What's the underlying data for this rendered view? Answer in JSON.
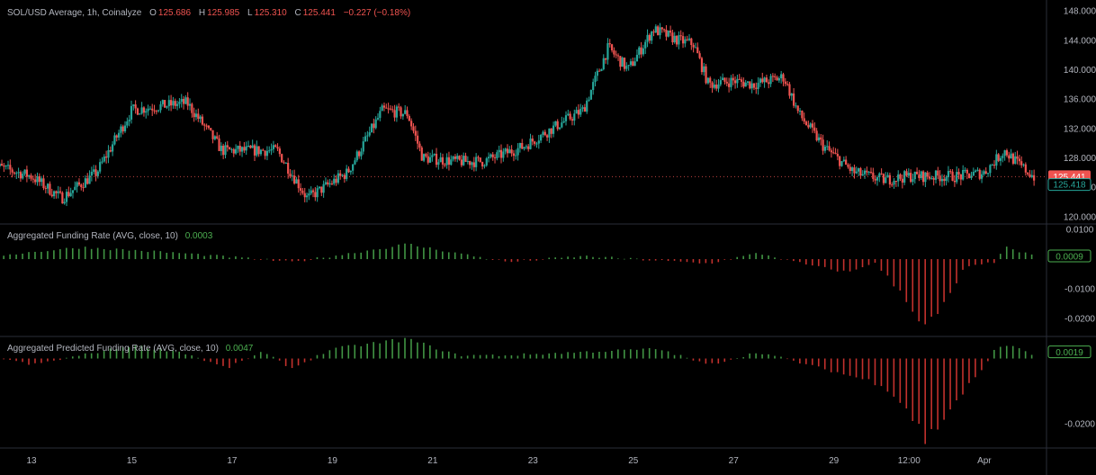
{
  "header": {
    "symbol": "SOL/USD Average, 1h, Coinalyze",
    "open_label": "O",
    "open": "125.686",
    "high_label": "H",
    "high": "125.985",
    "low_label": "L",
    "low": "125.310",
    "close_label": "C",
    "close": "125.441",
    "change": "−0.227 (−0.18%)"
  },
  "panes": {
    "funding": {
      "title": "Aggregated Funding Rate (AVG, close, 10)",
      "value": "0.0003",
      "badge": "0.0009"
    },
    "predicted": {
      "title": "Aggregated Predicted Funding Rate (AVG, close, 10)",
      "value": "0.0047",
      "badge": "0.0019"
    }
  },
  "colors": {
    "up": "#26a69a",
    "down": "#ef5350",
    "hist_up": "#4caf50",
    "hist_down": "#e53935",
    "grid": "#2a2e39",
    "text": "#b2b5be"
  },
  "price_badges": {
    "last": "125.441",
    "bid": "125.418"
  },
  "chart_data": [
    {
      "type": "candlestick",
      "title": "SOL/USD Average, 1h, Coinalyze",
      "x_ticks": [
        "13",
        "15",
        "17",
        "19",
        "21",
        "23",
        "25",
        "27",
        "29",
        "12:00",
        "Apr"
      ],
      "y_ticks": [
        "120.000",
        "124.000",
        "128.000",
        "132.000",
        "136.000",
        "140.000",
        "144.000",
        "148.000"
      ],
      "ylim": [
        119,
        149
      ],
      "close_path": [
        {
          "day": 12.2,
          "close": 127
        },
        {
          "day": 13.0,
          "close": 125.5
        },
        {
          "day": 13.6,
          "close": 122.5
        },
        {
          "day": 14.3,
          "close": 126
        },
        {
          "day": 15.0,
          "close": 134.5
        },
        {
          "day": 15.5,
          "close": 135
        },
        {
          "day": 16.1,
          "close": 135.5
        },
        {
          "day": 16.8,
          "close": 129
        },
        {
          "day": 17.3,
          "close": 129
        },
        {
          "day": 17.9,
          "close": 129
        },
        {
          "day": 18.5,
          "close": 122.5
        },
        {
          "day": 19.3,
          "close": 126
        },
        {
          "day": 20.0,
          "close": 134.5
        },
        {
          "day": 20.5,
          "close": 134
        },
        {
          "day": 20.8,
          "close": 128
        },
        {
          "day": 21.5,
          "close": 127.5
        },
        {
          "day": 22.0,
          "close": 127.5
        },
        {
          "day": 22.8,
          "close": 129.5
        },
        {
          "day": 23.5,
          "close": 132.5
        },
        {
          "day": 24.0,
          "close": 134.5
        },
        {
          "day": 24.5,
          "close": 143
        },
        {
          "day": 24.9,
          "close": 140
        },
        {
          "day": 25.4,
          "close": 145.5
        },
        {
          "day": 25.9,
          "close": 144
        },
        {
          "day": 26.2,
          "close": 143.5
        },
        {
          "day": 26.5,
          "close": 138
        },
        {
          "day": 27.0,
          "close": 138.5
        },
        {
          "day": 27.4,
          "close": 138
        },
        {
          "day": 28.0,
          "close": 139
        },
        {
          "day": 28.3,
          "close": 134
        },
        {
          "day": 28.8,
          "close": 129.5
        },
        {
          "day": 29.4,
          "close": 126
        },
        {
          "day": 30.0,
          "close": 125
        },
        {
          "day": 30.5,
          "close": 125.5
        },
        {
          "day": 31.0,
          "close": 125.5
        },
        {
          "day": 31.5,
          "close": 125.5
        },
        {
          "day": 32.0,
          "close": 126
        },
        {
          "day": 32.4,
          "close": 129
        },
        {
          "day": 32.7,
          "close": 127
        },
        {
          "day": 33.0,
          "close": 125.4
        }
      ],
      "last": 125.441,
      "bid": 125.418
    },
    {
      "type": "bar",
      "title": "Aggregated Funding Rate (AVG, close, 10)",
      "y_ticks": [
        "0.0100",
        "-0.0100",
        "-0.0200"
      ],
      "ylim": [
        -0.026,
        0.0115
      ],
      "profile": [
        {
          "day": 12.2,
          "value": 0.001
        },
        {
          "day": 14.0,
          "value": 0.004
        },
        {
          "day": 16.0,
          "value": 0.002
        },
        {
          "day": 17.5,
          "value": 0.0
        },
        {
          "day": 18.2,
          "value": -0.001
        },
        {
          "day": 19.0,
          "value": 0.001
        },
        {
          "day": 20.5,
          "value": 0.005
        },
        {
          "day": 21.5,
          "value": 0.002
        },
        {
          "day": 22.5,
          "value": -0.001
        },
        {
          "day": 24.0,
          "value": 0.001
        },
        {
          "day": 25.5,
          "value": -0.0005
        },
        {
          "day": 26.5,
          "value": -0.0015
        },
        {
          "day": 27.5,
          "value": 0.002
        },
        {
          "day": 28.5,
          "value": -0.002
        },
        {
          "day": 29.3,
          "value": -0.0045
        },
        {
          "day": 29.8,
          "value": -0.001
        },
        {
          "day": 30.5,
          "value": -0.014
        },
        {
          "day": 30.8,
          "value": -0.024
        },
        {
          "day": 31.2,
          "value": -0.016
        },
        {
          "day": 31.6,
          "value": -0.003
        },
        {
          "day": 32.2,
          "value": -0.001
        },
        {
          "day": 32.4,
          "value": 0.004
        },
        {
          "day": 33.0,
          "value": 0.001
        }
      ],
      "last_value": 0.0009
    },
    {
      "type": "bar",
      "title": "Aggregated Predicted Funding Rate (AVG, close, 10)",
      "y_ticks": [
        "-0.0200"
      ],
      "ylim": [
        -0.0275,
        0.0065
      ],
      "profile": [
        {
          "day": 12.2,
          "value": 0.001
        },
        {
          "day": 13.0,
          "value": -0.002
        },
        {
          "day": 15.0,
          "value": 0.004
        },
        {
          "day": 16.0,
          "value": 0.002
        },
        {
          "day": 16.9,
          "value": -0.003
        },
        {
          "day": 17.6,
          "value": 0.002
        },
        {
          "day": 18.2,
          "value": -0.003
        },
        {
          "day": 19.0,
          "value": 0.003
        },
        {
          "day": 20.5,
          "value": 0.006
        },
        {
          "day": 21.5,
          "value": 0.001
        },
        {
          "day": 22.5,
          "value": 0.001
        },
        {
          "day": 24.0,
          "value": 0.002
        },
        {
          "day": 25.5,
          "value": 0.003
        },
        {
          "day": 26.5,
          "value": -0.002
        },
        {
          "day": 27.5,
          "value": 0.002
        },
        {
          "day": 28.5,
          "value": -0.002
        },
        {
          "day": 29.5,
          "value": -0.006
        },
        {
          "day": 30.0,
          "value": -0.008
        },
        {
          "day": 30.5,
          "value": -0.016
        },
        {
          "day": 30.85,
          "value": -0.0255
        },
        {
          "day": 31.2,
          "value": -0.018
        },
        {
          "day": 31.6,
          "value": -0.01
        },
        {
          "day": 32.0,
          "value": -0.003
        },
        {
          "day": 32.2,
          "value": 0.003
        },
        {
          "day": 32.6,
          "value": 0.004
        },
        {
          "day": 33.0,
          "value": 0.001
        }
      ],
      "last_value": 0.0019
    }
  ]
}
